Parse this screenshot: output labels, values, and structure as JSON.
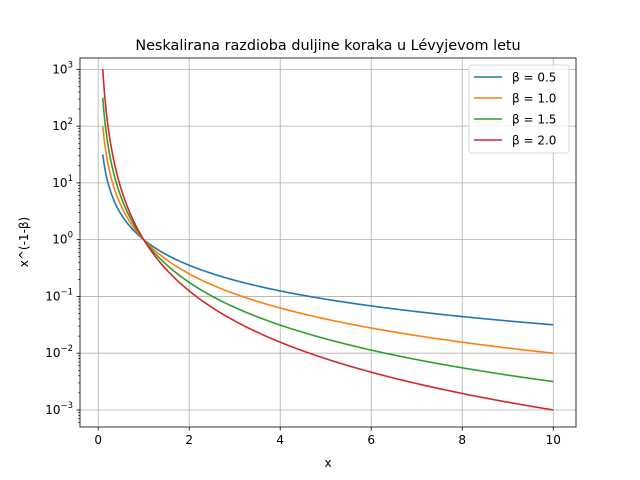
{
  "chart_data": {
    "type": "line",
    "title": "Neskalirana razdioba duljine koraka u Lévyjevom letu",
    "xlabel": "x",
    "ylabel": "x^(-1-β)",
    "xlim": [
      -0.4,
      10.5
    ],
    "ylim_log10": [
      -3.3,
      3.2
    ],
    "yscale": "log",
    "grid": true,
    "legend_position": "top-right",
    "x_ticks": [
      0,
      2,
      4,
      6,
      8,
      10
    ],
    "x_tick_labels": [
      "0",
      "2",
      "4",
      "6",
      "8",
      "10"
    ],
    "y_ticks_log10": [
      -3,
      -2,
      -1,
      0,
      1,
      2,
      3
    ],
    "y_tick_labels": [
      {
        "base": "10",
        "exp": "−3"
      },
      {
        "base": "10",
        "exp": "−2"
      },
      {
        "base": "10",
        "exp": "−1"
      },
      {
        "base": "10",
        "exp": "0"
      },
      {
        "base": "10",
        "exp": "1"
      },
      {
        "base": "10",
        "exp": "2"
      },
      {
        "base": "10",
        "exp": "3"
      }
    ],
    "x_range": [
      0.1,
      10
    ],
    "series": [
      {
        "name": "β = 0.5",
        "beta": 0.5,
        "color": "#1f77b4",
        "x": [
          0.1,
          0.25,
          0.5,
          1,
          2,
          4,
          6,
          8,
          10
        ],
        "y": [
          31.6,
          8.0,
          2.83,
          1.0,
          0.354,
          0.125,
          0.068,
          0.044,
          0.0316
        ]
      },
      {
        "name": "β = 1.0",
        "beta": 1.0,
        "color": "#ff7f0e",
        "x": [
          0.1,
          0.25,
          0.5,
          1,
          2,
          4,
          6,
          8,
          10
        ],
        "y": [
          100,
          16.0,
          4.0,
          1.0,
          0.25,
          0.0625,
          0.0278,
          0.0156,
          0.01
        ]
      },
      {
        "name": "β = 1.5",
        "beta": 1.5,
        "color": "#2ca02c",
        "x": [
          0.1,
          0.25,
          0.5,
          1,
          2,
          4,
          6,
          8,
          10
        ],
        "y": [
          316,
          32.0,
          5.66,
          1.0,
          0.177,
          0.03125,
          0.0113,
          0.0055,
          0.00316
        ]
      },
      {
        "name": "β = 2.0",
        "beta": 2.0,
        "color": "#d62728",
        "x": [
          0.1,
          0.25,
          0.5,
          1,
          2,
          4,
          6,
          8,
          10
        ],
        "y": [
          1000,
          64.0,
          8.0,
          1.0,
          0.125,
          0.0156,
          0.00463,
          0.00195,
          0.001
        ]
      }
    ]
  }
}
